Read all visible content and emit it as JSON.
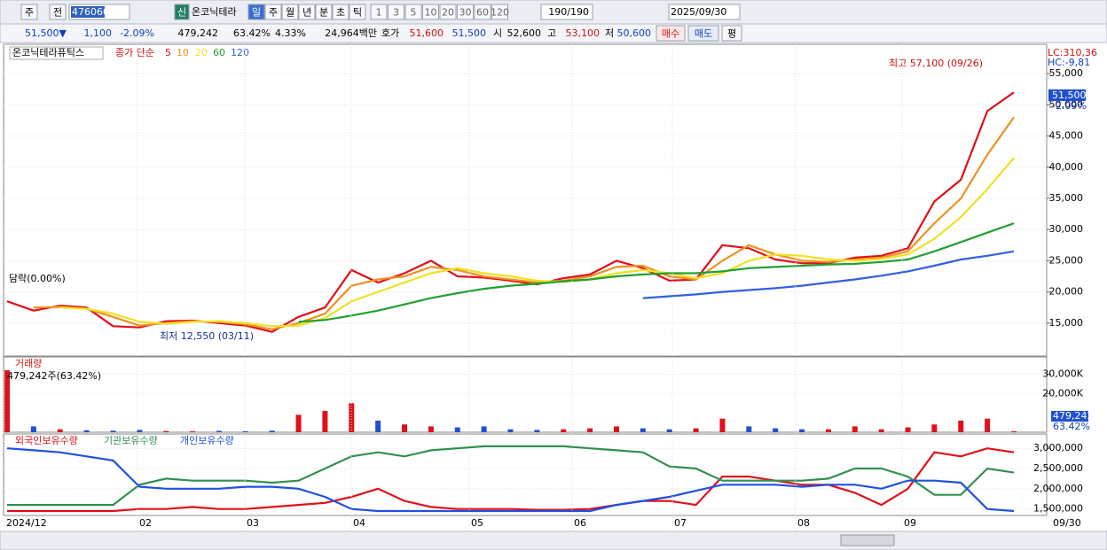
{
  "toolbar": {
    "market": "주",
    "prev": "전",
    "code": "476060",
    "badge": "신",
    "name": "온코닉테라",
    "periods": [
      "일",
      "주",
      "월",
      "년",
      "분",
      "초",
      "틱"
    ],
    "intervals": [
      "1",
      "3",
      "5",
      "10",
      "20",
      "30",
      "60",
      "120"
    ],
    "count": "190/190",
    "date": "2025/09/30"
  },
  "info": {
    "price": "51,500▼",
    "change": "1,100",
    "change_pct": "-2.09%",
    "volume": "479,242",
    "volume_ratio": "63.42%",
    "turnover": "4.33%",
    "amount": "24,964백만",
    "quote_label": "호가",
    "ask": "51,600",
    "bid": "51,500",
    "open_label": "시",
    "open": "52,600",
    "high_label": "고",
    "high": "53,100",
    "low_label": "저",
    "low": "50,600",
    "buy": "매수",
    "sell": "매도",
    "avg": "평"
  },
  "chart_data": [
    {
      "type": "line",
      "title": "온코닉테라퓨틱스",
      "legend_label": "종가 단순",
      "annotations": {
        "high": "최고 57,100 (09/26)",
        "low": "최저 12,550 (03/11)",
        "limit": "담락(0.00%)",
        "lc": "LC:310,36",
        "hc": "HC:-9,81",
        "last": "51,500",
        "last_pct": "-2.09%"
      },
      "ylim": [
        10000,
        59000
      ],
      "yticks": [
        {
          "value": 15000,
          "label": "15,000"
        },
        {
          "value": 20000,
          "label": "20,000"
        },
        {
          "value": 25000,
          "label": "25,000"
        },
        {
          "value": 30000,
          "label": "30,000"
        },
        {
          "value": 35000,
          "label": "35,000"
        },
        {
          "value": 40000,
          "label": "40,000"
        },
        {
          "value": 45000,
          "label": "45,000"
        },
        {
          "value": 50000,
          "label": "50,000"
        },
        {
          "value": 55000,
          "label": "55,000"
        }
      ],
      "grid": true,
      "series": [
        {
          "name": "5",
          "color": "#e0101a",
          "values": [
            18500,
            17000,
            17800,
            17500,
            14500,
            14300,
            15300,
            15400,
            15000,
            14600,
            13600,
            16000,
            17500,
            23500,
            21500,
            23000,
            25000,
            22500,
            22300,
            21800,
            21200,
            22200,
            22800,
            25000,
            23800,
            21800,
            22000,
            27500,
            27000,
            25200,
            24600,
            24600,
            25500,
            25800,
            27000,
            34500,
            38000,
            49000,
            52000
          ]
        },
        {
          "name": "10",
          "color": "#f09020",
          "values": [
            null,
            17500,
            17600,
            17300,
            16000,
            14600,
            15000,
            15300,
            15200,
            14800,
            14000,
            15000,
            16500,
            21000,
            22000,
            22500,
            24000,
            23500,
            22500,
            22000,
            21500,
            21800,
            22500,
            24000,
            24200,
            22500,
            22000,
            25000,
            27500,
            26000,
            25000,
            24800,
            25200,
            25500,
            26500,
            31000,
            35000,
            42000,
            48000
          ]
        },
        {
          "name": "20",
          "color": "#f0e020",
          "values": [
            null,
            null,
            17500,
            17300,
            16500,
            15200,
            14900,
            15200,
            15300,
            15000,
            14500,
            14600,
            15800,
            18500,
            20000,
            21500,
            23000,
            23800,
            23000,
            22500,
            21800,
            21600,
            22000,
            23000,
            23500,
            23000,
            22200,
            23000,
            25000,
            26000,
            25800,
            25200,
            25000,
            25300,
            26000,
            28500,
            32000,
            36500,
            41500
          ]
        },
        {
          "name": "60",
          "color": "#20a030",
          "values": [
            null,
            null,
            null,
            null,
            null,
            null,
            null,
            null,
            null,
            null,
            null,
            15200,
            15500,
            16200,
            17000,
            18000,
            19000,
            19800,
            20500,
            21000,
            21300,
            21700,
            22000,
            22500,
            22800,
            23000,
            23000,
            23300,
            23800,
            24000,
            24200,
            24400,
            24500,
            24800,
            25200,
            26500,
            28000,
            29500,
            31000
          ]
        },
        {
          "name": "120",
          "color": "#3060e0",
          "values": [
            null,
            null,
            null,
            null,
            null,
            null,
            null,
            null,
            null,
            null,
            null,
            null,
            null,
            null,
            null,
            null,
            null,
            null,
            null,
            null,
            null,
            null,
            null,
            null,
            19000,
            19300,
            19600,
            20000,
            20300,
            20600,
            21000,
            21500,
            22000,
            22600,
            23300,
            24200,
            25200,
            25800,
            26500
          ]
        }
      ]
    },
    {
      "type": "bar",
      "title": "거래량",
      "annotation": "479,242주(63.42%)",
      "last_pct": "63.42%",
      "ylim": [
        0,
        38000
      ],
      "yticks": [
        {
          "value": 20000,
          "label": "20,000K"
        },
        {
          "value": 30000,
          "label": "30,000K"
        }
      ],
      "values": [
        32000,
        3000,
        1500,
        1000,
        800,
        1200,
        600,
        500,
        700,
        500,
        800,
        9000,
        11000,
        15000,
        6000,
        4000,
        3000,
        2500,
        3000,
        1500,
        1200,
        1500,
        2000,
        3000,
        2000,
        1500,
        2000,
        7000,
        3000,
        2000,
        1500,
        1500,
        3000,
        1500,
        2500,
        4000,
        6000,
        7000,
        479.242
      ],
      "value_labels": [
        null,
        null,
        null,
        null,
        null,
        null,
        null,
        null,
        null,
        null,
        null,
        null,
        null,
        null,
        null,
        null,
        null,
        null,
        null,
        null,
        null,
        null,
        null,
        null,
        null,
        null,
        null,
        null,
        null,
        null,
        null,
        null,
        null,
        null,
        null,
        null,
        null,
        null,
        "479,242"
      ]
    },
    {
      "type": "line",
      "ylim": [
        1340000,
        3310000
      ],
      "yticks": [
        {
          "value": 1500000,
          "label": "1,500,000"
        },
        {
          "value": 2000000,
          "label": "2,000,000"
        },
        {
          "value": 2500000,
          "label": "2,500,000"
        },
        {
          "value": 3000000,
          "label": "3,000,000"
        }
      ],
      "series": [
        {
          "name": "외국인보유수량",
          "color": "#e0101a",
          "values": [
            1450000,
            1450000,
            1450000,
            1450000,
            1450000,
            1500000,
            1500000,
            1550000,
            1500000,
            1500000,
            1550000,
            1600000,
            1650000,
            1800000,
            2000000,
            1700000,
            1550000,
            1500000,
            1500000,
            1500000,
            1480000,
            1480000,
            1500000,
            1600000,
            1700000,
            1700000,
            1600000,
            2300000,
            2300000,
            2200000,
            2100000,
            2100000,
            1900000,
            1600000,
            2000000,
            2900000,
            2800000,
            3000000,
            2900000
          ]
        },
        {
          "name": "기관보유수량",
          "color": "#309050",
          "values": [
            1600000,
            1600000,
            1600000,
            1600000,
            1600000,
            2100000,
            2250000,
            2200000,
            2200000,
            2200000,
            2150000,
            2200000,
            2500000,
            2800000,
            2900000,
            2800000,
            2950000,
            3000000,
            3050000,
            3050000,
            3050000,
            3050000,
            3000000,
            2950000,
            2900000,
            2550000,
            2500000,
            2200000,
            2200000,
            2200000,
            2200000,
            2250000,
            2500000,
            2500000,
            2300000,
            1850000,
            1850000,
            2500000,
            2400000
          ]
        },
        {
          "name": "개인보유수량",
          "color": "#2050e0",
          "values": [
            3000000,
            2950000,
            2900000,
            2800000,
            2700000,
            2050000,
            2000000,
            2000000,
            2000000,
            2050000,
            2050000,
            2000000,
            1800000,
            1500000,
            1450000,
            1450000,
            1450000,
            1450000,
            1450000,
            1450000,
            1450000,
            1450000,
            1450000,
            1600000,
            1700000,
            1800000,
            1950000,
            2100000,
            2100000,
            2100000,
            2050000,
            2100000,
            2100000,
            2000000,
            2200000,
            2200000,
            2150000,
            1500000,
            1450000
          ]
        }
      ],
      "months": [
        "2024/12",
        "02",
        "03",
        "04",
        "05",
        "06",
        "07",
        "08",
        "09"
      ],
      "end_date": "09/30"
    }
  ]
}
